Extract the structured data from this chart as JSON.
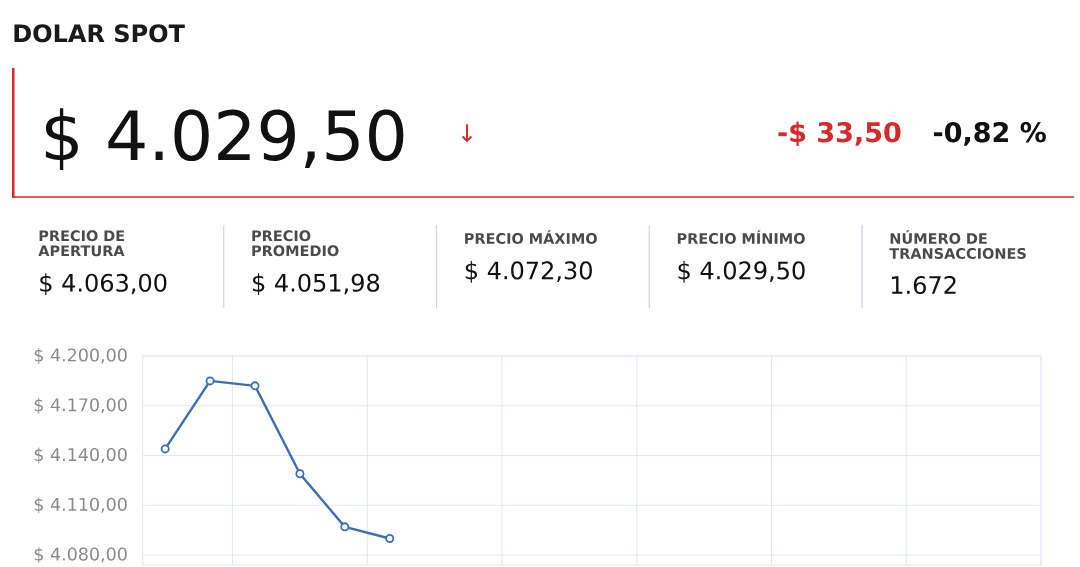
{
  "chart_data": [
    {
      "type": "other",
      "title": "DOLAR SPOT",
      "annotations": [
        "$ 4.029,50",
        "↓",
        "-$ 33,50",
        "-0,82 %",
        "PRECIO DE APERTURA",
        "$ 4.063,00",
        "PRECIO PROMEDIO",
        "$ 4.051,98",
        "PRECIO MÁXIMO",
        "$ 4.072,30",
        "PRECIO MÍNIMO",
        "$ 4.029,50",
        "NÚMERO DE TRANSACCIONES",
        "1.672"
      ]
    },
    {
      "type": "line",
      "categories": [
        null,
        null,
        null,
        null,
        null,
        null,
        null,
        null,
        null,
        null,
        null,
        null,
        null,
        null,
        null,
        null,
        null,
        null,
        null,
        null
      ],
      "values": [
        4144,
        4185,
        4182,
        4129,
        4097,
        4090,
        null,
        null,
        null,
        null,
        null,
        null,
        null,
        null,
        null,
        null,
        null,
        null,
        null,
        null
      ],
      "color": "#3e6db5",
      "ylim": [
        4074,
        4200
      ],
      "yticks": [
        {
          "value": 4080,
          "label": "$ 4.080,00"
        },
        {
          "value": 4110,
          "label": "$ 4.110,00"
        },
        {
          "value": 4140,
          "label": "$ 4.140,00"
        },
        {
          "value": 4170,
          "label": "$ 4.170,00"
        },
        {
          "value": 4200,
          "label": "$ 4.200,00"
        }
      ],
      "grid": true,
      "marker": "circle",
      "tick_labels": "y"
    }
  ]
}
